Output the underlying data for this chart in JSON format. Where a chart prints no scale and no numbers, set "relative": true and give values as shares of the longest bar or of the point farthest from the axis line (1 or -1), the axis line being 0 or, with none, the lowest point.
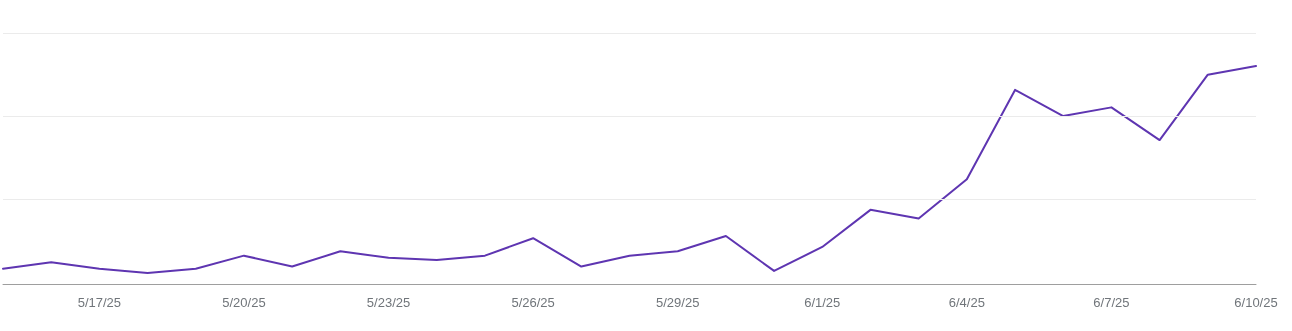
{
  "chart_data": {
    "type": "line",
    "relative": true,
    "marker": "none",
    "line_style": "solid",
    "ref_lines": [
      {
        "axis": "y",
        "value": 0.385,
        "color": "#ebebeb"
      },
      {
        "axis": "y",
        "value": 0.77,
        "color": "#ebebeb"
      },
      {
        "axis": "y",
        "value": 1.15,
        "color": "#ebebeb"
      }
    ],
    "categories": [
      null,
      null,
      "5/17/25",
      null,
      null,
      "5/20/25",
      null,
      null,
      "5/23/25",
      null,
      null,
      "5/26/25",
      null,
      null,
      "5/29/25",
      null,
      null,
      "6/1/25",
      null,
      null,
      "6/4/25",
      null,
      null,
      "6/7/25",
      null,
      null,
      "6/10/25"
    ],
    "series": [
      {
        "color": "#5e35b1",
        "values": [
          0.07,
          0.1,
          0.07,
          0.05,
          0.07,
          0.13,
          0.08,
          0.15,
          0.12,
          0.11,
          0.13,
          0.21,
          0.08,
          0.13,
          0.15,
          0.22,
          0.06,
          0.17,
          0.34,
          0.3,
          0.48,
          0.89,
          0.77,
          0.81,
          0.66,
          0.96,
          1
        ]
      }
    ]
  }
}
